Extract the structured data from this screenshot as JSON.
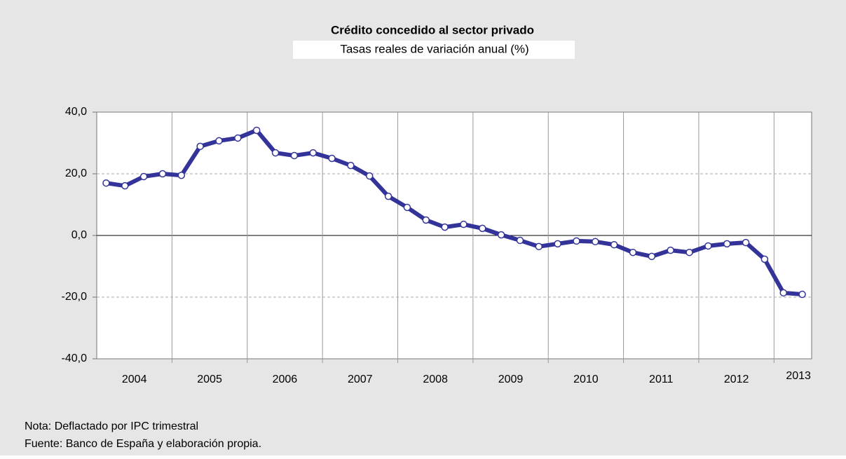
{
  "chart_data": {
    "type": "line",
    "title": "Crédito concedido al sector privado",
    "subtitle": "Tasas reales de variación anual (%)",
    "categories": [
      null,
      "2004",
      null,
      null,
      null,
      "2005",
      null,
      null,
      null,
      "2006",
      null,
      null,
      null,
      "2007",
      null,
      null,
      null,
      "2008",
      null,
      null,
      null,
      "2009",
      null,
      null,
      null,
      "2010",
      null,
      null,
      null,
      "2011",
      null,
      null,
      null,
      "2012",
      null,
      null,
      null,
      "2013"
    ],
    "series": [
      {
        "name": "Crédito",
        "color": "#333399",
        "values": [
          17.0,
          16.1,
          19.1,
          20.0,
          19.5,
          28.9,
          30.7,
          31.6,
          34.1,
          26.8,
          25.9,
          26.8,
          25.0,
          22.7,
          19.3,
          12.7,
          9.1,
          5.0,
          2.7,
          3.6,
          2.3,
          0.2,
          -1.6,
          -3.6,
          -2.7,
          -1.8,
          -2.0,
          -3.0,
          -5.5,
          -6.8,
          -4.8,
          -5.5,
          -3.4,
          -2.7,
          -2.3,
          -7.7,
          -18.6,
          -19.1
        ]
      }
    ],
    "ylim": [
      -40,
      40
    ],
    "yticks": [
      {
        "value": -40,
        "label": "-40,0"
      },
      {
        "value": -20,
        "label": "-20,0"
      },
      {
        "value": 0,
        "label": "0,0"
      },
      {
        "value": 20,
        "label": "20,0"
      },
      {
        "value": 40,
        "label": "40,0"
      }
    ],
    "grid": true,
    "notes": [
      "Nota: Deflactado por IPC trimestral",
      "Fuente: Banco de España y elaboración propia."
    ]
  }
}
